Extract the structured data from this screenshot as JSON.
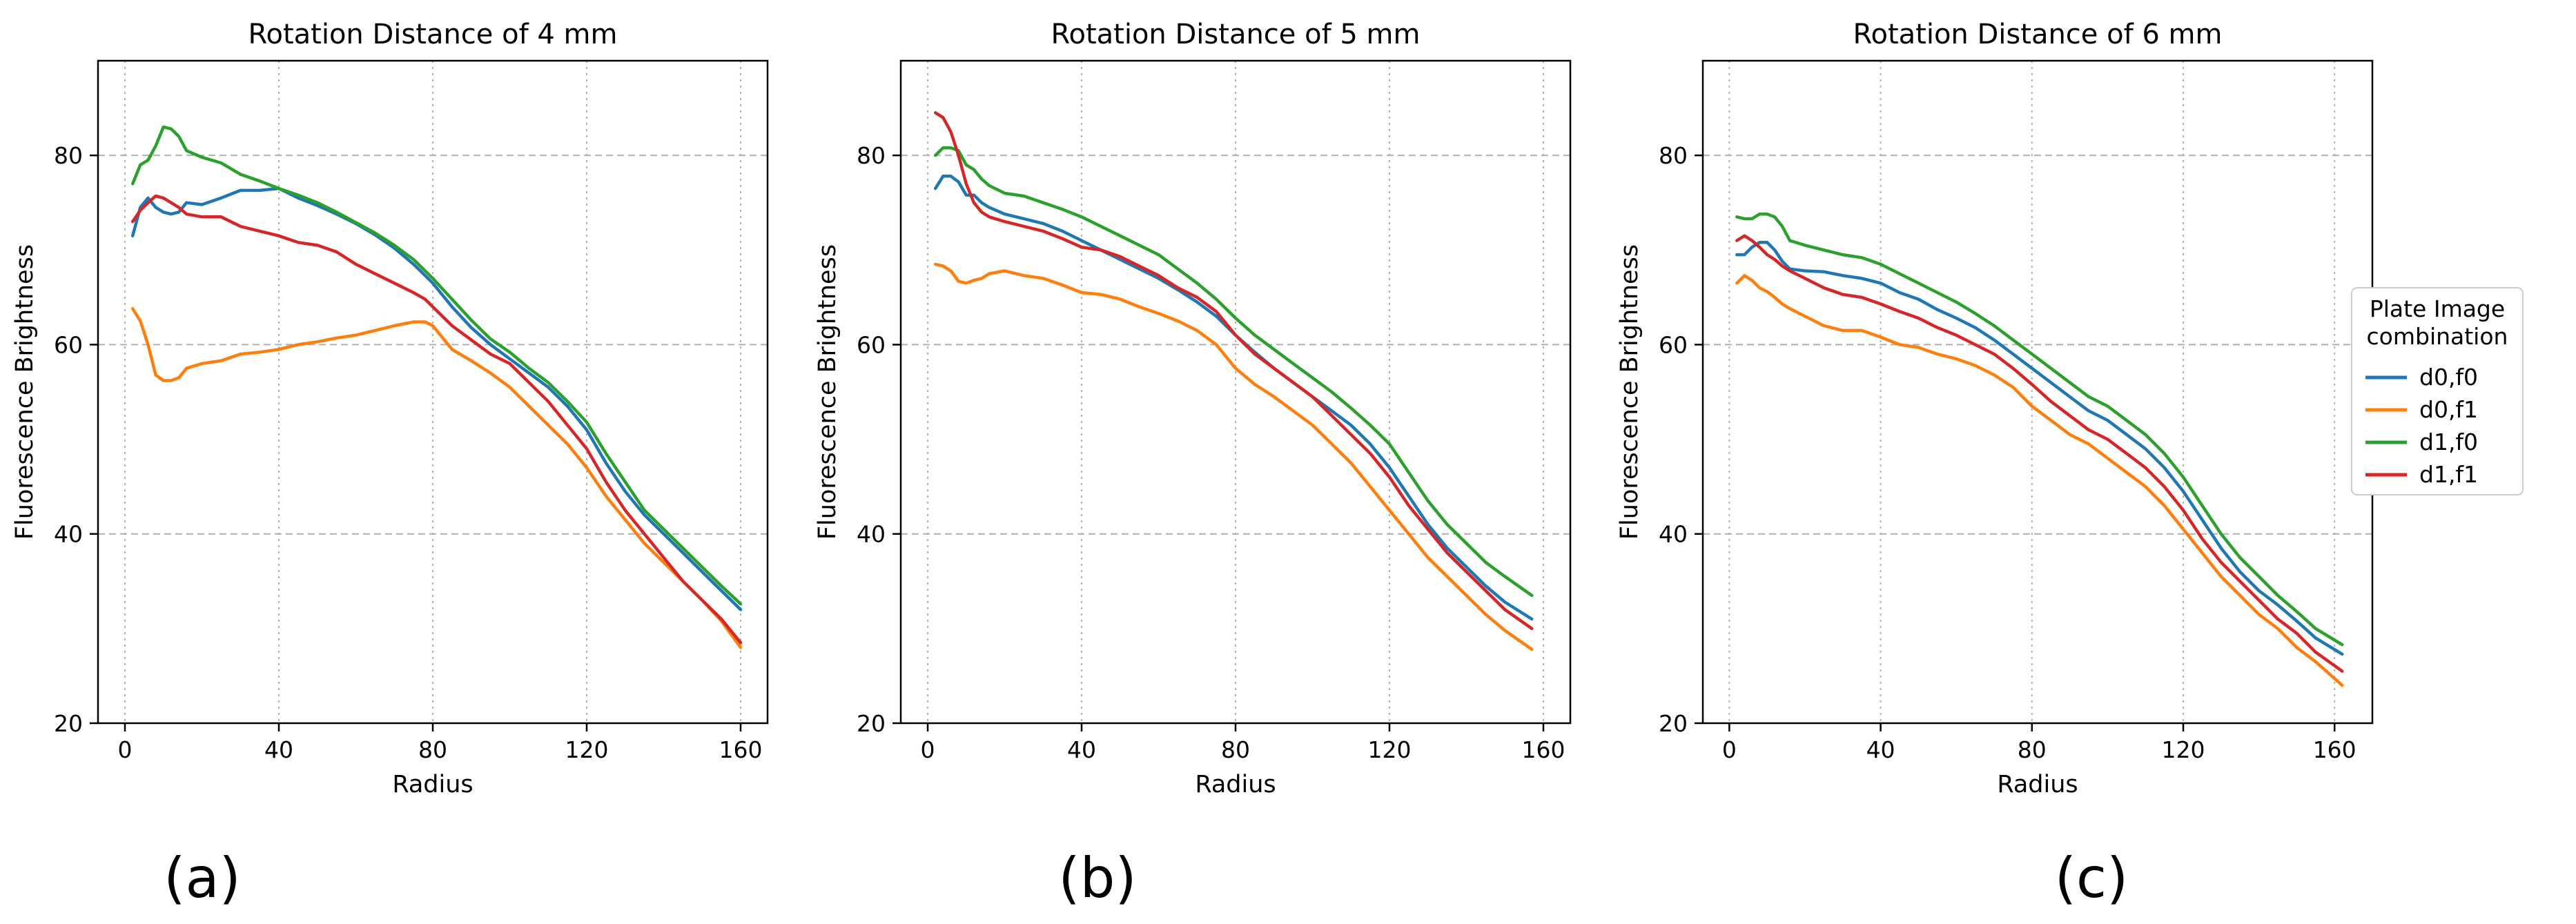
{
  "colors": {
    "d0,f0": "#1f77b4",
    "d0,f1": "#ff7f0e",
    "d1,f0": "#2ca02c",
    "d1,f1": "#d62728",
    "grid": "#b0b0b0",
    "axes": "#000000"
  },
  "legend": {
    "title_line1": "Plate Image",
    "title_line2": "combination",
    "placement": "right"
  },
  "chart_data": [
    {
      "type": "line",
      "panel_label": "(a)",
      "title": "Rotation Distance of 4 mm",
      "xlabel": "Radius",
      "ylabel": "Fluorescence Brightness",
      "xlim": [
        -7,
        167
      ],
      "ylim": [
        20,
        90
      ],
      "xticks": [
        0,
        40,
        80,
        120,
        160
      ],
      "yticks": [
        20,
        40,
        60,
        80
      ],
      "grid": true,
      "x": [
        2,
        4,
        6,
        8,
        10,
        12,
        14,
        16,
        20,
        25,
        30,
        35,
        40,
        45,
        50,
        55,
        60,
        65,
        70,
        75,
        78,
        80,
        85,
        90,
        95,
        100,
        105,
        110,
        115,
        120,
        125,
        130,
        135,
        140,
        145,
        150,
        155,
        160
      ],
      "series": [
        {
          "name": "d0,f0",
          "values": [
            71.5,
            74.5,
            75.5,
            74.5,
            74.0,
            73.8,
            74.0,
            75.0,
            74.8,
            75.5,
            76.3,
            76.3,
            76.5,
            75.5,
            74.7,
            73.8,
            72.8,
            71.6,
            70.2,
            68.5,
            67.3,
            66.5,
            64.0,
            61.8,
            60.0,
            58.5,
            57.0,
            55.5,
            53.5,
            51.0,
            47.5,
            44.5,
            42.0,
            40.0,
            38.0,
            36.0,
            34.0,
            32.0
          ]
        },
        {
          "name": "d0,f1",
          "values": [
            63.8,
            62.5,
            60.0,
            56.8,
            56.2,
            56.2,
            56.5,
            57.5,
            58.0,
            58.3,
            59.0,
            59.2,
            59.5,
            60.0,
            60.3,
            60.7,
            61.0,
            61.5,
            62.0,
            62.4,
            62.4,
            62.0,
            59.5,
            58.3,
            57.0,
            55.5,
            53.5,
            51.5,
            49.5,
            47.0,
            44.0,
            41.5,
            39.0,
            37.0,
            35.0,
            33.0,
            30.8,
            28.0
          ]
        },
        {
          "name": "d1,f0",
          "values": [
            77.0,
            79.0,
            79.5,
            81.0,
            83.0,
            82.8,
            82.0,
            80.5,
            79.8,
            79.2,
            78.0,
            77.3,
            76.5,
            75.8,
            75.0,
            74.0,
            72.9,
            71.8,
            70.5,
            69.0,
            67.8,
            67.0,
            64.8,
            62.6,
            60.6,
            59.2,
            57.5,
            56.0,
            54.0,
            51.8,
            48.5,
            45.5,
            42.5,
            40.5,
            38.5,
            36.5,
            34.5,
            32.6
          ]
        },
        {
          "name": "d1,f1",
          "values": [
            73.0,
            74.2,
            75.0,
            75.7,
            75.5,
            75.0,
            74.5,
            73.8,
            73.5,
            73.5,
            72.5,
            72.0,
            71.5,
            70.8,
            70.5,
            69.8,
            68.5,
            67.5,
            66.5,
            65.5,
            64.8,
            64.0,
            62.0,
            60.5,
            59.0,
            58.0,
            56.0,
            54.0,
            51.5,
            49.0,
            45.5,
            42.5,
            40.0,
            37.5,
            35.0,
            33.0,
            31.0,
            28.5
          ]
        }
      ]
    },
    {
      "type": "line",
      "panel_label": "(b)",
      "title": "Rotation Distance of 5 mm",
      "xlabel": "Radius",
      "ylabel": "Fluorescence Brightness",
      "xlim": [
        -7,
        167
      ],
      "ylim": [
        20,
        90
      ],
      "xticks": [
        0,
        40,
        80,
        120,
        160
      ],
      "yticks": [
        20,
        40,
        60,
        80
      ],
      "grid": true,
      "x": [
        2,
        4,
        6,
        8,
        10,
        12,
        14,
        16,
        20,
        25,
        30,
        35,
        40,
        45,
        50,
        55,
        60,
        65,
        70,
        75,
        80,
        85,
        90,
        95,
        100,
        105,
        110,
        115,
        120,
        125,
        130,
        135,
        140,
        145,
        150,
        157
      ],
      "series": [
        {
          "name": "d0,f0",
          "values": [
            76.5,
            77.8,
            77.8,
            77.2,
            75.8,
            75.8,
            75.0,
            74.5,
            73.8,
            73.3,
            72.8,
            72.0,
            71.0,
            70.0,
            69.0,
            68.0,
            67.0,
            65.8,
            64.5,
            63.0,
            61.0,
            59.2,
            57.5,
            56.0,
            54.5,
            53.0,
            51.5,
            49.5,
            47.0,
            44.0,
            41.0,
            38.5,
            36.5,
            34.5,
            32.8,
            31.0
          ]
        },
        {
          "name": "d0,f1",
          "values": [
            68.5,
            68.3,
            67.8,
            66.7,
            66.5,
            66.8,
            67.0,
            67.5,
            67.8,
            67.3,
            67.0,
            66.3,
            65.5,
            65.3,
            64.8,
            64.0,
            63.3,
            62.5,
            61.5,
            60.0,
            57.5,
            55.8,
            54.5,
            53.0,
            51.5,
            49.5,
            47.5,
            45.0,
            42.5,
            40.0,
            37.5,
            35.5,
            33.5,
            31.5,
            29.8,
            27.8
          ]
        },
        {
          "name": "d1,f0",
          "values": [
            80.0,
            80.8,
            80.8,
            80.5,
            79.0,
            78.5,
            77.5,
            76.8,
            76.0,
            75.7,
            75.0,
            74.3,
            73.5,
            72.5,
            71.5,
            70.5,
            69.5,
            68.0,
            66.5,
            64.8,
            62.8,
            61.0,
            59.5,
            58.0,
            56.5,
            55.0,
            53.3,
            51.5,
            49.5,
            46.5,
            43.5,
            41.0,
            39.0,
            37.0,
            35.5,
            33.5
          ]
        },
        {
          "name": "d1,f1",
          "values": [
            84.5,
            84.0,
            82.5,
            80.0,
            77.0,
            75.0,
            74.0,
            73.5,
            73.0,
            72.5,
            72.0,
            71.2,
            70.3,
            70.0,
            69.3,
            68.3,
            67.3,
            66.0,
            65.0,
            63.5,
            61.0,
            59.0,
            57.5,
            56.0,
            54.5,
            52.5,
            50.5,
            48.5,
            46.0,
            43.0,
            40.5,
            38.0,
            36.0,
            34.0,
            32.0,
            30.0
          ]
        }
      ]
    },
    {
      "type": "line",
      "panel_label": "(c)",
      "title": "Rotation Distance of 6 mm",
      "xlabel": "Radius",
      "ylabel": "Fluorescence Brightness",
      "xlim": [
        -7,
        170
      ],
      "ylim": [
        20,
        90
      ],
      "xticks": [
        0,
        40,
        80,
        120,
        160
      ],
      "yticks": [
        20,
        40,
        60,
        80
      ],
      "grid": true,
      "x": [
        2,
        4,
        6,
        8,
        10,
        12,
        14,
        16,
        20,
        25,
        30,
        35,
        40,
        45,
        50,
        55,
        60,
        65,
        70,
        75,
        80,
        85,
        90,
        95,
        100,
        105,
        110,
        115,
        120,
        125,
        130,
        135,
        140,
        145,
        150,
        155,
        162
      ],
      "series": [
        {
          "name": "d0,f0",
          "values": [
            69.5,
            69.5,
            70.3,
            70.8,
            70.8,
            70.0,
            68.8,
            68.0,
            67.8,
            67.7,
            67.3,
            67.0,
            66.5,
            65.5,
            64.8,
            63.7,
            62.8,
            61.8,
            60.5,
            59.0,
            57.5,
            56.0,
            54.5,
            53.0,
            52.0,
            50.5,
            49.0,
            47.0,
            44.5,
            41.5,
            38.5,
            36.0,
            34.0,
            32.5,
            30.8,
            29.0,
            27.3
          ]
        },
        {
          "name": "d0,f1",
          "values": [
            66.5,
            67.3,
            66.8,
            66.0,
            65.6,
            65.0,
            64.3,
            63.8,
            63.0,
            62.0,
            61.5,
            61.5,
            60.8,
            60.0,
            59.7,
            59.0,
            58.5,
            57.8,
            56.8,
            55.5,
            53.5,
            52.0,
            50.5,
            49.5,
            48.0,
            46.5,
            45.0,
            43.0,
            40.5,
            38.0,
            35.5,
            33.5,
            31.5,
            30.0,
            28.0,
            26.5,
            24.0
          ]
        },
        {
          "name": "d1,f0",
          "values": [
            73.5,
            73.3,
            73.3,
            73.8,
            73.8,
            73.5,
            72.5,
            71.0,
            70.5,
            70.0,
            69.5,
            69.2,
            68.5,
            67.5,
            66.5,
            65.5,
            64.5,
            63.3,
            62.0,
            60.5,
            59.0,
            57.5,
            56.0,
            54.5,
            53.5,
            52.0,
            50.5,
            48.5,
            46.0,
            43.0,
            40.0,
            37.5,
            35.5,
            33.5,
            31.8,
            30.0,
            28.3
          ]
        },
        {
          "name": "d1,f1",
          "values": [
            71.0,
            71.5,
            71.0,
            70.3,
            69.5,
            69.0,
            68.3,
            67.8,
            67.0,
            66.0,
            65.3,
            65.0,
            64.3,
            63.5,
            62.8,
            61.8,
            61.0,
            60.0,
            59.0,
            57.5,
            55.8,
            54.0,
            52.5,
            51.0,
            50.0,
            48.5,
            47.0,
            45.0,
            42.5,
            39.5,
            37.0,
            35.0,
            33.0,
            31.0,
            29.5,
            27.5,
            25.5
          ]
        }
      ]
    }
  ]
}
